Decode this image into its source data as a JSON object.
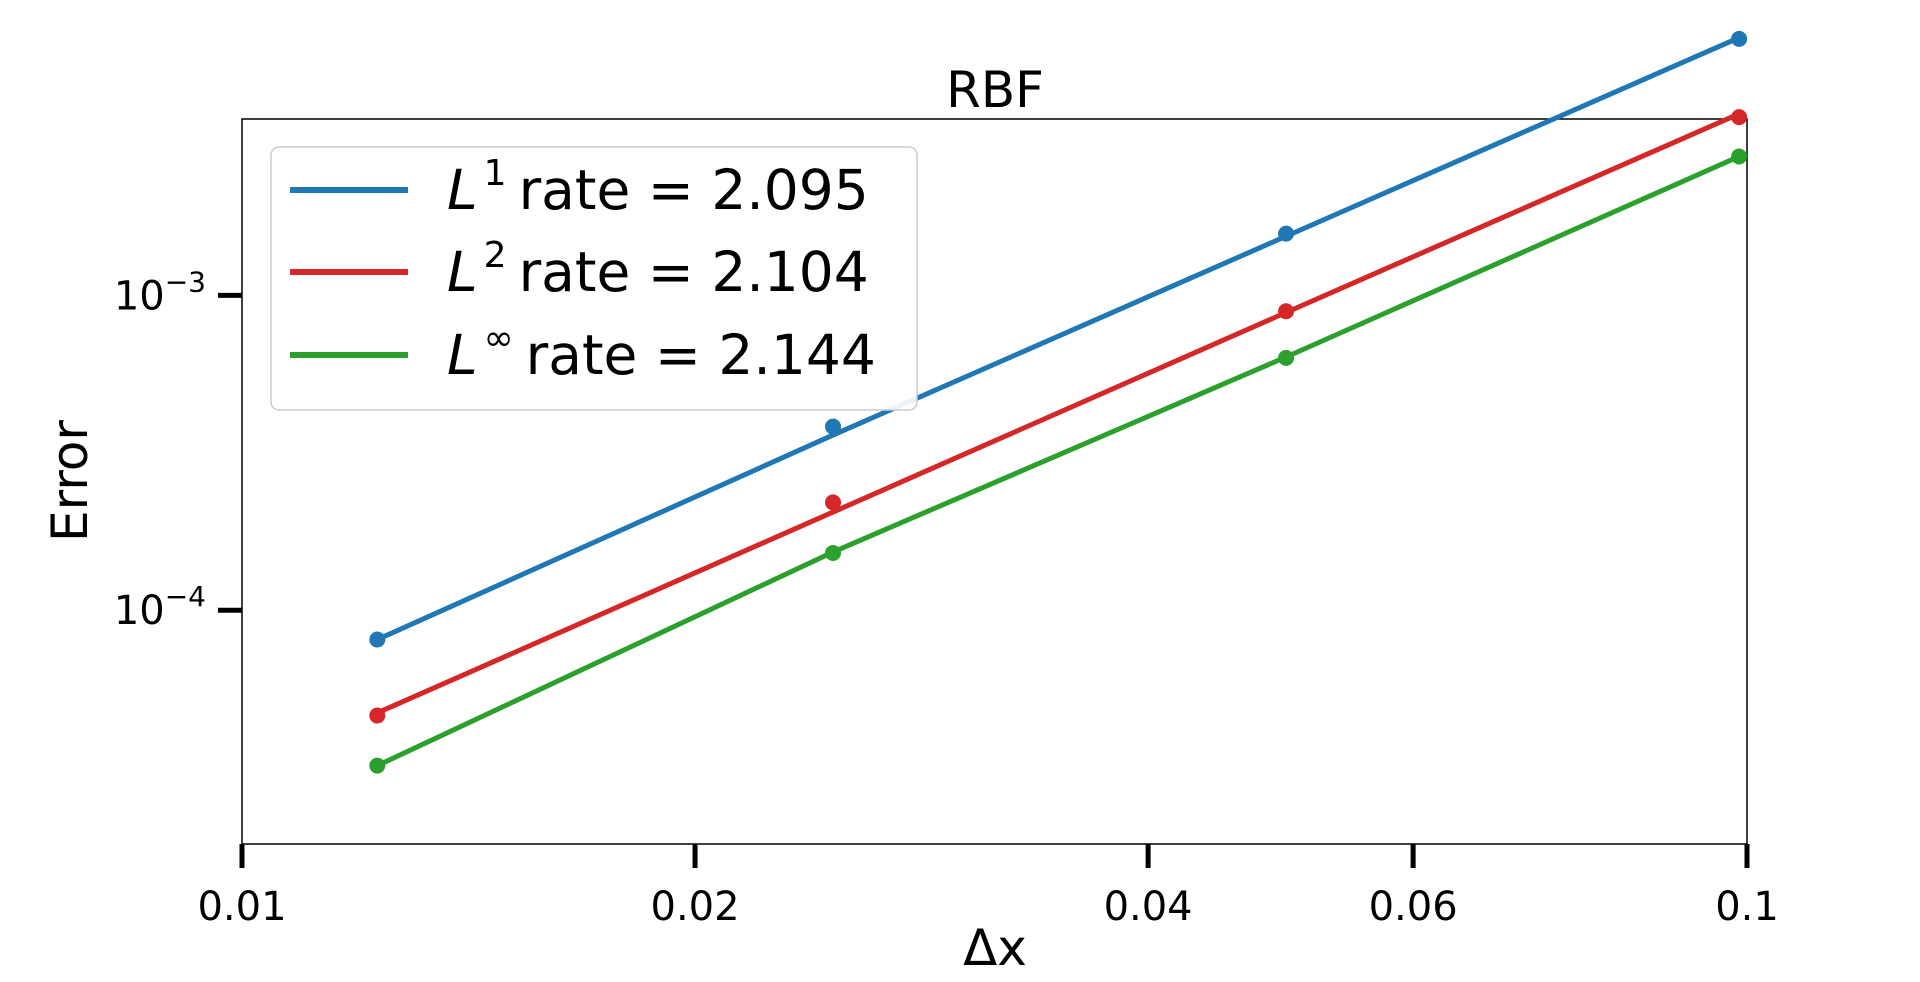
{
  "chart_data": {
    "type": "line",
    "title": "RBF",
    "xlabel": "Δx",
    "ylabel": "Error",
    "xscale": "log",
    "yscale": "log",
    "xlim": [
      0.01,
      0.1
    ],
    "ylim": [
      1.81e-05,
      0.00363
    ],
    "x_ticks": [
      {
        "value": 0.01,
        "label": "0.01"
      },
      {
        "value": 0.02,
        "label": "0.02"
      },
      {
        "value": 0.04,
        "label": "0.04"
      },
      {
        "value": 0.06,
        "label": "0.06"
      },
      {
        "value": 0.1,
        "label": "0.1"
      }
    ],
    "y_ticks": [
      {
        "value": 0.001,
        "base": "10",
        "exp": "−3"
      },
      {
        "value": 0.0001,
        "base": "10",
        "exp": "−4"
      }
    ],
    "grid": false,
    "legend_position": "top-left",
    "x": [
      0.0123,
      0.0247,
      0.0494,
      0.0988
    ],
    "series": [
      {
        "norm": "1",
        "legend_text": "rate = 2.095",
        "color": "#1f77b4",
        "points": [
          8.07e-05,
          0.000383,
          0.00157,
          0.00652
        ],
        "fit": [
          8.07e-05,
          0.00036,
          0.00154,
          0.00658
        ]
      },
      {
        "norm": "2",
        "legend_text": "rate = 2.104",
        "color": "#d62728",
        "points": [
          4.63e-05,
          0.00022,
          0.00089,
          0.00368
        ],
        "fit": [
          4.72e-05,
          0.000205,
          0.000882,
          0.00377
        ]
      },
      {
        "norm": "∞",
        "legend_text": "rate = 2.144",
        "color": "#2ca02c",
        "points": [
          3.21e-05,
          0.000152,
          0.000633,
          0.00276
        ],
        "fit": [
          3.21e-05,
          0.000153,
          0.000637,
          0.00276
        ]
      }
    ]
  }
}
